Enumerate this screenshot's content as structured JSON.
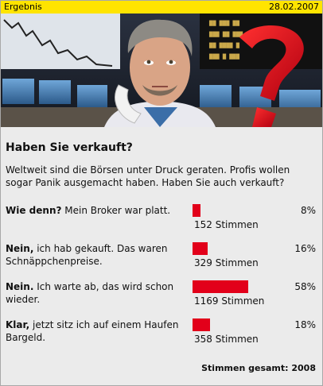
{
  "header": {
    "label": "Ergebnis",
    "date": "28.02.2007"
  },
  "poll": {
    "question": "Haben Sie verkauft?",
    "intro": "Weltweit sind die Börsen unter Druck geraten. Profis wollen sogar Panik ausgemacht haben. Haben Sie auch verkauft?",
    "bar_color": "#e2001a",
    "answers": [
      {
        "bold": "Wie denn?",
        "rest": " Mein Broker war platt.",
        "percent": 8,
        "percent_label": "8%",
        "votes_label": "152 Stimmen"
      },
      {
        "bold": "Nein,",
        "rest": " ich hab gekauft. Das waren Schnäppchenpreise.",
        "percent": 16,
        "percent_label": "16%",
        "votes_label": "329 Stimmen"
      },
      {
        "bold": "Nein.",
        "rest": " Ich warte ab, das wird schon wieder.",
        "percent": 58,
        "percent_label": "58%",
        "votes_label": "1169 Stimmen"
      },
      {
        "bold": "Klar,",
        "rest": " jetzt sitz ich auf einem Haufen Bargeld.",
        "percent": 18,
        "percent_label": "18%",
        "votes_label": "358 Stimmen"
      }
    ],
    "total_label": "Stimmen gesamt: 2008"
  }
}
